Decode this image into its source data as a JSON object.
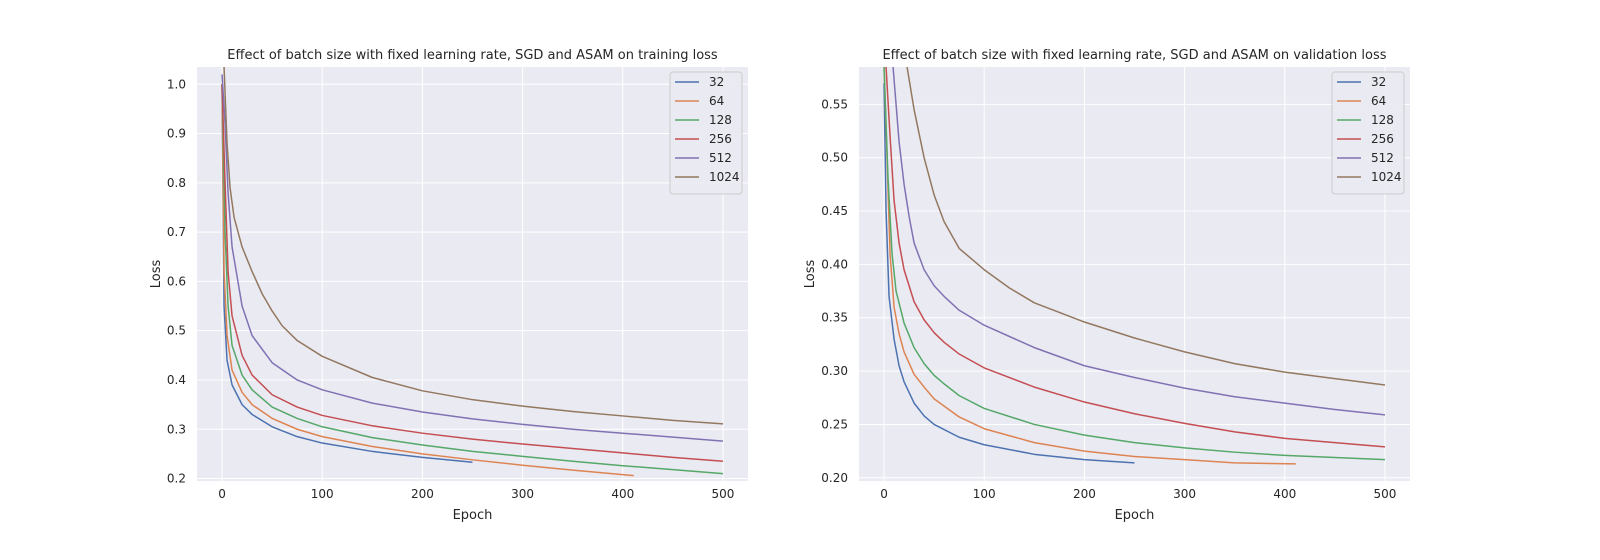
{
  "chart_data": [
    {
      "type": "line",
      "title": "Effect of batch size with fixed learning rate, SGD and ASAM on training loss",
      "xlabel": "Epoch",
      "ylabel": "Loss",
      "xlim": [
        -25,
        525
      ],
      "ylim": [
        0.195,
        1.035
      ],
      "xticks": [
        0,
        100,
        200,
        300,
        400,
        500
      ],
      "yticks": [
        0.2,
        0.3,
        0.4,
        0.5,
        0.6,
        0.7,
        0.8,
        0.9,
        1.0
      ],
      "ytick_labels": [
        "0.2",
        "0.3",
        "0.4",
        "0.5",
        "0.6",
        "0.7",
        "0.8",
        "0.9",
        "1.0"
      ],
      "grid": true,
      "legend_position": "top-right",
      "series": [
        {
          "name": "32",
          "color": "#4c72b0",
          "x": [
            0,
            2,
            5,
            10,
            20,
            30,
            50,
            75,
            100,
            150,
            200,
            250
          ],
          "y": [
            1.0,
            0.55,
            0.44,
            0.39,
            0.35,
            0.33,
            0.305,
            0.285,
            0.272,
            0.255,
            0.243,
            0.233
          ]
        },
        {
          "name": "64",
          "color": "#dd8452",
          "x": [
            0,
            2,
            5,
            10,
            20,
            30,
            50,
            75,
            100,
            150,
            200,
            250,
            300,
            350,
            411
          ],
          "y": [
            1.0,
            0.62,
            0.49,
            0.42,
            0.375,
            0.35,
            0.322,
            0.3,
            0.285,
            0.265,
            0.25,
            0.238,
            0.227,
            0.217,
            0.206
          ]
        },
        {
          "name": "128",
          "color": "#55a868",
          "x": [
            0,
            3,
            6,
            10,
            20,
            30,
            50,
            75,
            100,
            150,
            200,
            250,
            300,
            350,
            400,
            450,
            500
          ],
          "y": [
            1.0,
            0.7,
            0.55,
            0.47,
            0.41,
            0.38,
            0.345,
            0.322,
            0.305,
            0.283,
            0.268,
            0.255,
            0.245,
            0.235,
            0.226,
            0.218,
            0.21
          ]
        },
        {
          "name": "256",
          "color": "#c44e52",
          "x": [
            0,
            3,
            6,
            10,
            20,
            30,
            50,
            75,
            100,
            150,
            200,
            250,
            300,
            350,
            400,
            450,
            500
          ],
          "y": [
            1.0,
            0.8,
            0.62,
            0.53,
            0.45,
            0.41,
            0.37,
            0.345,
            0.328,
            0.307,
            0.292,
            0.28,
            0.27,
            0.261,
            0.252,
            0.243,
            0.235
          ]
        },
        {
          "name": "512",
          "color": "#8172b3",
          "x": [
            0,
            3,
            6,
            10,
            20,
            30,
            50,
            75,
            100,
            150,
            200,
            250,
            300,
            350,
            400,
            450,
            500
          ],
          "y": [
            1.02,
            0.92,
            0.78,
            0.67,
            0.55,
            0.49,
            0.435,
            0.4,
            0.38,
            0.353,
            0.335,
            0.321,
            0.31,
            0.3,
            0.292,
            0.284,
            0.276
          ]
        },
        {
          "name": "1024",
          "color": "#937860",
          "x": [
            2,
            5,
            8,
            12,
            20,
            30,
            40,
            50,
            60,
            75,
            100,
            150,
            200,
            250,
            300,
            350,
            400,
            450,
            500
          ],
          "y": [
            1.035,
            0.88,
            0.79,
            0.73,
            0.67,
            0.62,
            0.575,
            0.54,
            0.51,
            0.48,
            0.448,
            0.405,
            0.378,
            0.36,
            0.347,
            0.336,
            0.327,
            0.318,
            0.311
          ]
        }
      ]
    },
    {
      "type": "line",
      "title": "Effect of batch size with fixed learning rate, SGD and ASAM on validation loss",
      "xlabel": "Epoch",
      "ylabel": "Loss",
      "xlim": [
        -25,
        525
      ],
      "ylim": [
        0.197,
        0.585
      ],
      "xticks": [
        0,
        100,
        200,
        300,
        400,
        500
      ],
      "yticks": [
        0.2,
        0.25,
        0.3,
        0.35,
        0.4,
        0.45,
        0.5,
        0.55
      ],
      "ytick_labels": [
        "0.20",
        "0.25",
        "0.30",
        "0.35",
        "0.40",
        "0.45",
        "0.50",
        "0.55"
      ],
      "grid": true,
      "legend_position": "top-right",
      "series": [
        {
          "name": "32",
          "color": "#4c72b0",
          "x": [
            0,
            2,
            5,
            10,
            15,
            20,
            30,
            40,
            50,
            75,
            100,
            150,
            200,
            250
          ],
          "y": [
            0.57,
            0.45,
            0.37,
            0.33,
            0.305,
            0.29,
            0.27,
            0.258,
            0.25,
            0.238,
            0.231,
            0.222,
            0.217,
            0.214
          ]
        },
        {
          "name": "64",
          "color": "#dd8452",
          "x": [
            0,
            3,
            6,
            10,
            15,
            20,
            30,
            40,
            50,
            75,
            100,
            150,
            200,
            250,
            300,
            350,
            411
          ],
          "y": [
            0.585,
            0.5,
            0.41,
            0.36,
            0.335,
            0.318,
            0.297,
            0.285,
            0.274,
            0.257,
            0.246,
            0.233,
            0.225,
            0.22,
            0.217,
            0.214,
            0.213
          ]
        },
        {
          "name": "128",
          "color": "#55a868",
          "x": [
            0,
            4,
            8,
            12,
            20,
            30,
            40,
            50,
            60,
            75,
            100,
            150,
            200,
            250,
            300,
            350,
            400,
            450,
            500
          ],
          "y": [
            0.585,
            0.48,
            0.41,
            0.375,
            0.345,
            0.322,
            0.307,
            0.296,
            0.288,
            0.277,
            0.265,
            0.25,
            0.24,
            0.233,
            0.228,
            0.224,
            0.221,
            0.219,
            0.217
          ]
        },
        {
          "name": "256",
          "color": "#c44e52",
          "x": [
            2,
            6,
            10,
            15,
            20,
            30,
            40,
            50,
            60,
            75,
            100,
            150,
            200,
            250,
            300,
            350,
            400,
            450,
            500
          ],
          "y": [
            0.585,
            0.52,
            0.46,
            0.42,
            0.395,
            0.365,
            0.348,
            0.336,
            0.327,
            0.316,
            0.303,
            0.285,
            0.271,
            0.26,
            0.251,
            0.243,
            0.237,
            0.233,
            0.229
          ]
        },
        {
          "name": "512",
          "color": "#8172b3",
          "x": [
            9,
            12,
            15,
            20,
            25,
            30,
            40,
            50,
            60,
            75,
            100,
            150,
            200,
            250,
            300,
            350,
            400,
            450,
            500
          ],
          "y": [
            0.585,
            0.55,
            0.515,
            0.475,
            0.445,
            0.42,
            0.395,
            0.38,
            0.37,
            0.357,
            0.343,
            0.322,
            0.305,
            0.294,
            0.284,
            0.276,
            0.27,
            0.264,
            0.259
          ]
        },
        {
          "name": "1024",
          "color": "#937860",
          "x": [
            23,
            30,
            40,
            50,
            60,
            75,
            100,
            125,
            150,
            200,
            250,
            300,
            350,
            400,
            450,
            500
          ],
          "y": [
            0.585,
            0.545,
            0.5,
            0.465,
            0.44,
            0.415,
            0.395,
            0.378,
            0.364,
            0.346,
            0.331,
            0.318,
            0.307,
            0.299,
            0.293,
            0.287
          ]
        }
      ]
    }
  ]
}
